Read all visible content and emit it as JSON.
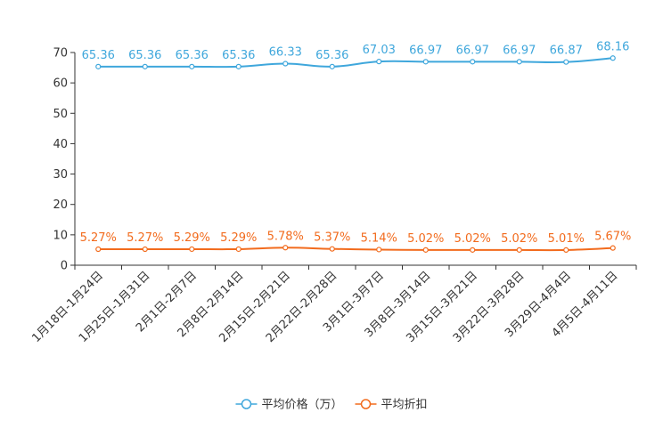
{
  "chart_data": {
    "type": "line",
    "title": "",
    "xlabel": "",
    "ylabel": "",
    "ylim": [
      0,
      70
    ],
    "yticks": [
      0,
      10,
      20,
      30,
      40,
      50,
      60,
      70
    ],
    "grid": false,
    "legend_position": "bottom-center",
    "categories": [
      "1月18日-1月24日",
      "1月25日-1月31日",
      "2月1日-2月7日",
      "2月8日-2月14日",
      "2月15日-2月21日",
      "2月22日-2月28日",
      "3月1日-3月7日",
      "3月8日-3月14日",
      "3月15日-3月21日",
      "3月22日-3月28日",
      "3月29日-4月4日",
      "4月5日-4月11日"
    ],
    "series": [
      {
        "name": "平均价格（万）",
        "color": "#3fa7dc",
        "values": [
          65.36,
          65.36,
          65.36,
          65.36,
          66.33,
          65.36,
          67.03,
          66.97,
          66.97,
          66.97,
          66.87,
          68.16
        ],
        "labels": [
          "65.36",
          "65.36",
          "65.36",
          "65.36",
          "66.33",
          "65.36",
          "67.03",
          "66.97",
          "66.97",
          "66.97",
          "66.87",
          "68.16"
        ]
      },
      {
        "name": "平均折扣",
        "color": "#f26b1d",
        "values": [
          5.27,
          5.27,
          5.29,
          5.29,
          5.78,
          5.37,
          5.14,
          5.02,
          5.02,
          5.02,
          5.01,
          5.67
        ],
        "labels": [
          "5.27%",
          "5.27%",
          "5.29%",
          "5.29%",
          "5.78%",
          "5.37%",
          "5.14%",
          "5.02%",
          "5.02%",
          "5.02%",
          "5.01%",
          "5.67%"
        ]
      }
    ]
  }
}
